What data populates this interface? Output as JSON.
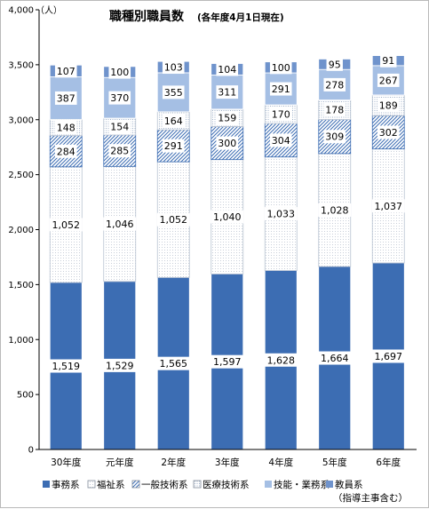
{
  "chart_data": {
    "type": "bar",
    "stacked": true,
    "title": "職種別職員数",
    "subtitle": "(各年度4月1日現在)",
    "unit_label": "（人）",
    "categories": [
      "30年度",
      "元年度",
      "2年度",
      "3年度",
      "4年度",
      "5年度",
      "6年度"
    ],
    "ylim": [
      0,
      4000
    ],
    "yticks": [
      "0",
      "500",
      "1,000",
      "1,500",
      "2,000",
      "2,500",
      "3,000",
      "3,500",
      "4,000"
    ],
    "grid": false,
    "legend_position": "bottom",
    "series": [
      {
        "name": "事務系",
        "values": [
          1519,
          1529,
          1565,
          1597,
          1628,
          1664,
          1697
        ],
        "labels": [
          "1,519",
          "1,529",
          "1,565",
          "1,597",
          "1,628",
          "1,664",
          "1,697"
        ],
        "color": "#3c6db3"
      },
      {
        "name": "福祉系",
        "values": [
          1052,
          1046,
          1052,
          1040,
          1033,
          1028,
          1037
        ],
        "labels": [
          "1,052",
          "1,046",
          "1,052",
          "1,040",
          "1,033",
          "1,028",
          "1,037"
        ],
        "color": "#ffffff"
      },
      {
        "name": "一般技術系",
        "values": [
          284,
          285,
          291,
          300,
          304,
          309,
          302
        ],
        "labels": [
          "284",
          "285",
          "291",
          "300",
          "304",
          "309",
          "302"
        ],
        "color": "#8eaedc"
      },
      {
        "name": "医療技術系",
        "values": [
          148,
          154,
          164,
          159,
          170,
          178,
          189
        ],
        "labels": [
          "148",
          "154",
          "164",
          "159",
          "170",
          "178",
          "189"
        ],
        "color": "#ffffff"
      },
      {
        "name": "技能・業務系",
        "values": [
          387,
          370,
          355,
          311,
          291,
          278,
          267
        ],
        "labels": [
          "387",
          "370",
          "355",
          "311",
          "291",
          "278",
          "267"
        ],
        "color": "#a5bfe4"
      },
      {
        "name": "教員系",
        "legend_note": "（指導主事含む）",
        "values": [
          107,
          100,
          103,
          104,
          100,
          95,
          91
        ],
        "labels": [
          "107",
          "100",
          "103",
          "104",
          "100",
          "95",
          "91"
        ],
        "color": "#6f93cc"
      }
    ]
  }
}
